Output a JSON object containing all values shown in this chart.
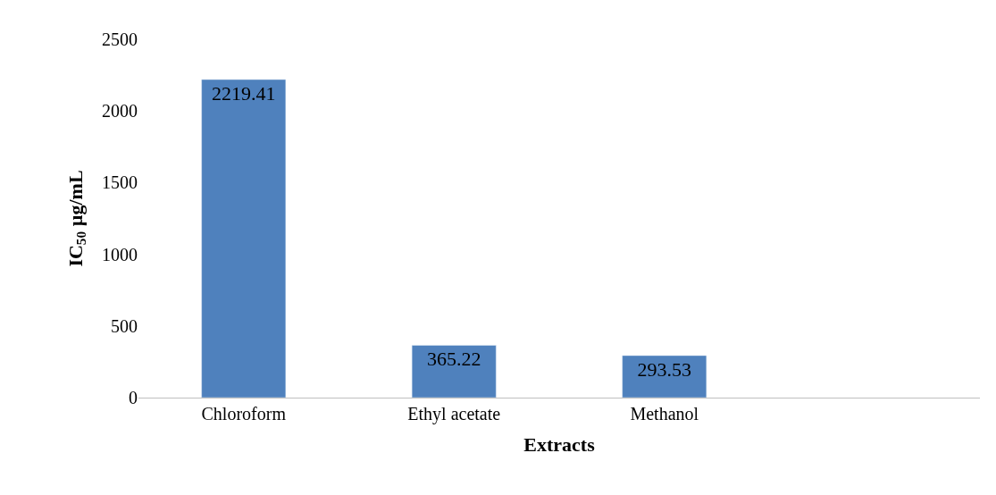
{
  "chart_data": {
    "type": "bar",
    "xlabel": "Extracts",
    "ylabel": "IC$_{50}$ µg/mL",
    "categories": [
      "Chloroform",
      "Ethyl acetate",
      "Methanol",
      null
    ],
    "values": [
      2219.41,
      365.22,
      293.53,
      null
    ],
    "color": "#4f81bd",
    "ylim": [
      0,
      2500
    ],
    "yticks": [
      0,
      500,
      1000,
      1500,
      2000,
      2500
    ],
    "legend": false,
    "data_labels": true
  }
}
